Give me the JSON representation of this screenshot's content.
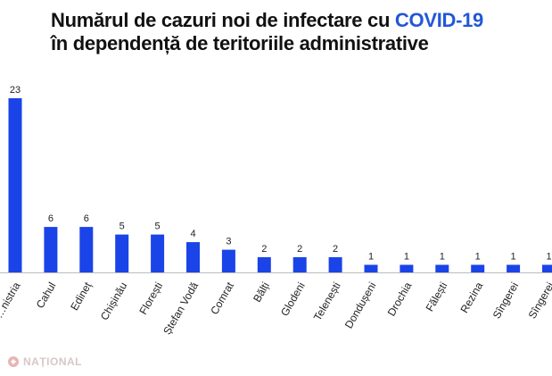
{
  "title": {
    "line1_prefix": "Numărul de cazuri noi de infectare cu ",
    "line1_highlight": "COVID-19",
    "line2": "în dependență de teritoriile administrative"
  },
  "colors": {
    "bar": "#1a44e8",
    "highlight": "#2257d6",
    "baseline": "#bbbbbb"
  },
  "chart_data": {
    "type": "bar",
    "categories": [
      "…nistria",
      "Cahul",
      "Edineț",
      "Chișinău",
      "Florești",
      "Ștefan Vodă",
      "Comrat",
      "Bălți",
      "Glodeni",
      "Telenești",
      "Dondușeni",
      "Drochia",
      "Fălești",
      "Rezina",
      "Sîngerei",
      "Sîngerei"
    ],
    "values": [
      23,
      6,
      6,
      5,
      5,
      4,
      3,
      2,
      2,
      2,
      1,
      1,
      1,
      1,
      1,
      1
    ],
    "title": "Numărul de cazuri noi de infectare cu COVID-19 în dependență de teritoriile administrative",
    "xlabel": "",
    "ylabel": "",
    "ylim": [
      0,
      23
    ],
    "grid": false,
    "legend": "none"
  },
  "watermark": {
    "text": "NAȚIONAL"
  }
}
